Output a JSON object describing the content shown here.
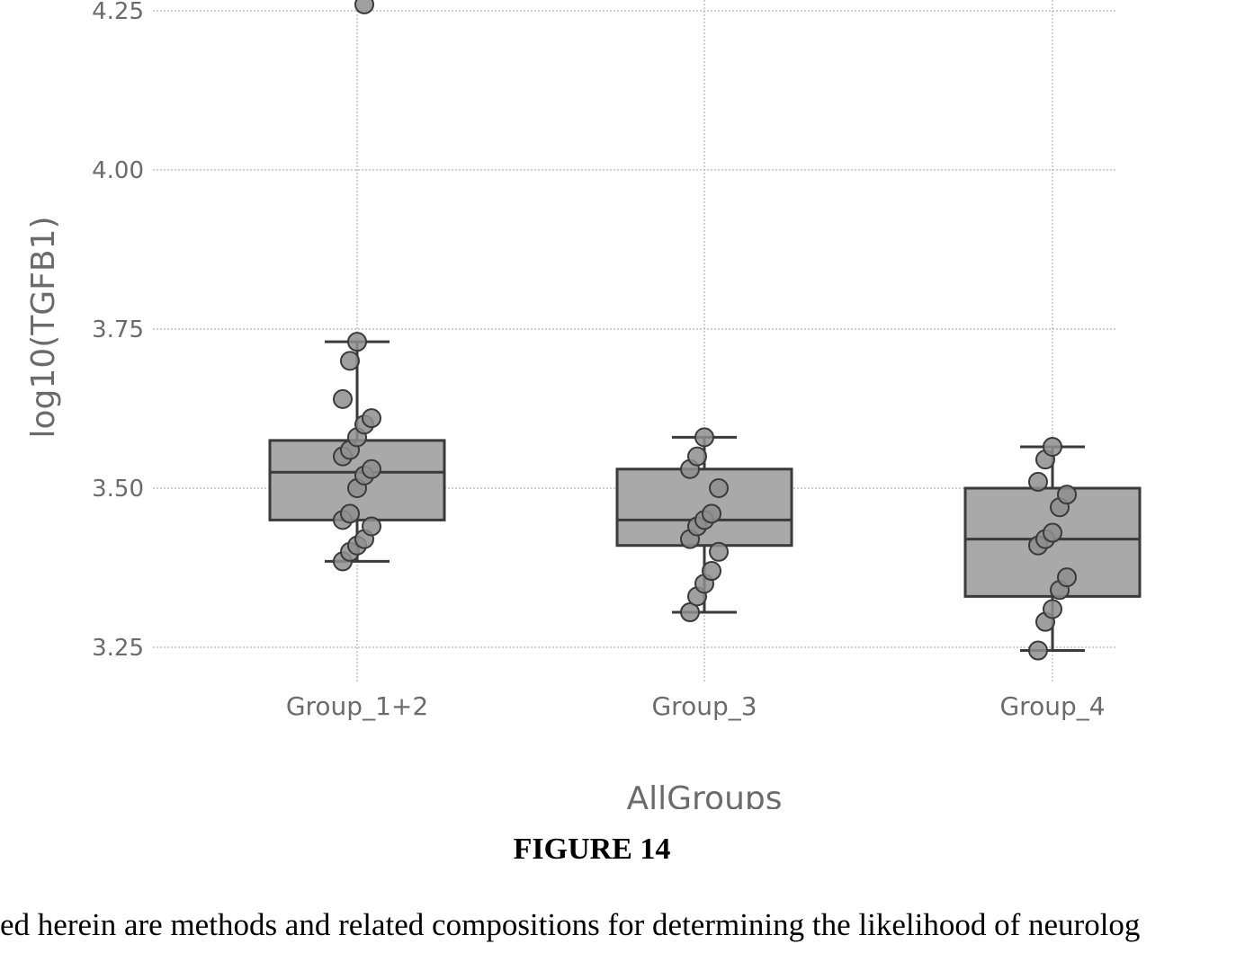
{
  "chart_data": {
    "type": "box",
    "xlabel": "AllGroups",
    "ylabel": "log10(TGFB1)",
    "ylim": [
      3.17,
      4.26
    ],
    "yticks": [
      "3.25",
      "3.50",
      "3.75",
      "4.00",
      "4.25"
    ],
    "grid": true,
    "categories": [
      "Group_1+2",
      "Group_3",
      "Group_4"
    ],
    "boxes": [
      {
        "category": "Group_1+2",
        "whisker_low": 3.385,
        "q1": 3.45,
        "median": 3.525,
        "q3": 3.575,
        "whisker_high": 3.73,
        "points": [
          3.385,
          3.4,
          3.41,
          3.42,
          3.44,
          3.45,
          3.46,
          3.5,
          3.52,
          3.53,
          3.55,
          3.56,
          3.58,
          3.6,
          3.61,
          3.64,
          3.7,
          3.73,
          4.26
        ]
      },
      {
        "category": "Group_3",
        "whisker_low": 3.305,
        "q1": 3.41,
        "median": 3.45,
        "q3": 3.53,
        "whisker_high": 3.58,
        "points": [
          3.305,
          3.33,
          3.35,
          3.37,
          3.4,
          3.42,
          3.44,
          3.45,
          3.46,
          3.5,
          3.53,
          3.55,
          3.58
        ]
      },
      {
        "category": "Group_4",
        "whisker_low": 3.245,
        "q1": 3.33,
        "median": 3.42,
        "q3": 3.5,
        "whisker_high": 3.565,
        "points": [
          3.245,
          3.29,
          3.31,
          3.34,
          3.36,
          3.41,
          3.42,
          3.43,
          3.47,
          3.49,
          3.51,
          3.545,
          3.565
        ]
      }
    ]
  },
  "figure_caption": "FIGURE 14",
  "body_text": {
    "line1": "ed herein are methods and related compositions for determining the likelihood of neurolog"
  },
  "colors": {
    "box_fill": "#a9a9a9",
    "box_edge": "#3a3a3a",
    "point_fill": "#8e8e8e",
    "grid": "#b5b5b5",
    "tick_text": "#6b6b6b"
  }
}
